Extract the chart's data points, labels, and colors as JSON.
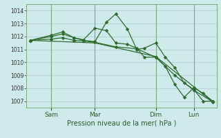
{
  "background_color": "#ceeaea",
  "grid_color": "#aacece",
  "line_color": "#2d6b2d",
  "vline_color": "#7aaa7a",
  "title": "Pression niveau de la mer( hPa )",
  "ylim": [
    1006.5,
    1014.5
  ],
  "yticks": [
    1007,
    1008,
    1009,
    1010,
    1011,
    1012,
    1013,
    1014
  ],
  "x_tick_labels": [
    "Sam",
    "Mar",
    "Dim",
    "Lun"
  ],
  "x_tick_positions": [
    0.13,
    0.36,
    0.68,
    0.88
  ],
  "vline_positions": [
    0.13,
    0.36,
    0.68,
    0.88
  ],
  "series": [
    {
      "x": [
        0.02,
        0.13,
        0.19,
        0.25,
        0.3,
        0.36,
        0.42,
        0.47,
        0.53,
        0.58,
        0.62,
        0.68,
        0.73,
        0.78,
        0.83,
        0.88,
        0.93,
        0.98
      ],
      "y": [
        1011.7,
        1012.0,
        1012.2,
        1011.9,
        1011.7,
        1011.6,
        1013.1,
        1013.75,
        1012.6,
        1011.0,
        1011.1,
        1011.5,
        1010.4,
        1009.6,
        1008.4,
        1007.9,
        1007.0,
        1007.0
      ],
      "marker": "D",
      "markersize": 2.5
    },
    {
      "x": [
        0.02,
        0.13,
        0.19,
        0.25,
        0.3,
        0.36,
        0.42,
        0.47,
        0.53,
        0.58,
        0.62,
        0.68,
        0.73,
        0.78,
        0.83,
        0.88,
        0.93,
        0.98
      ],
      "y": [
        1011.7,
        1012.1,
        1012.35,
        1011.9,
        1011.75,
        1012.65,
        1012.45,
        1011.5,
        1011.4,
        1011.1,
        1010.4,
        1010.4,
        1009.7,
        1008.3,
        1007.3,
        1008.05,
        1007.6,
        1007.0
      ],
      "marker": "D",
      "markersize": 2.5
    },
    {
      "x": [
        0.02,
        0.13,
        0.19,
        0.25,
        0.3,
        0.36,
        0.47,
        0.58,
        0.68,
        0.78,
        0.88,
        0.98
      ],
      "y": [
        1011.7,
        1011.8,
        1011.9,
        1011.7,
        1011.65,
        1011.55,
        1011.2,
        1011.05,
        1010.4,
        1009.0,
        1007.85,
        1006.95
      ],
      "marker": "D",
      "markersize": 2.5
    },
    {
      "x": [
        0.02,
        0.36,
        0.68,
        0.98
      ],
      "y": [
        1011.7,
        1011.5,
        1010.45,
        1006.95
      ],
      "marker": null,
      "markersize": 0
    }
  ]
}
